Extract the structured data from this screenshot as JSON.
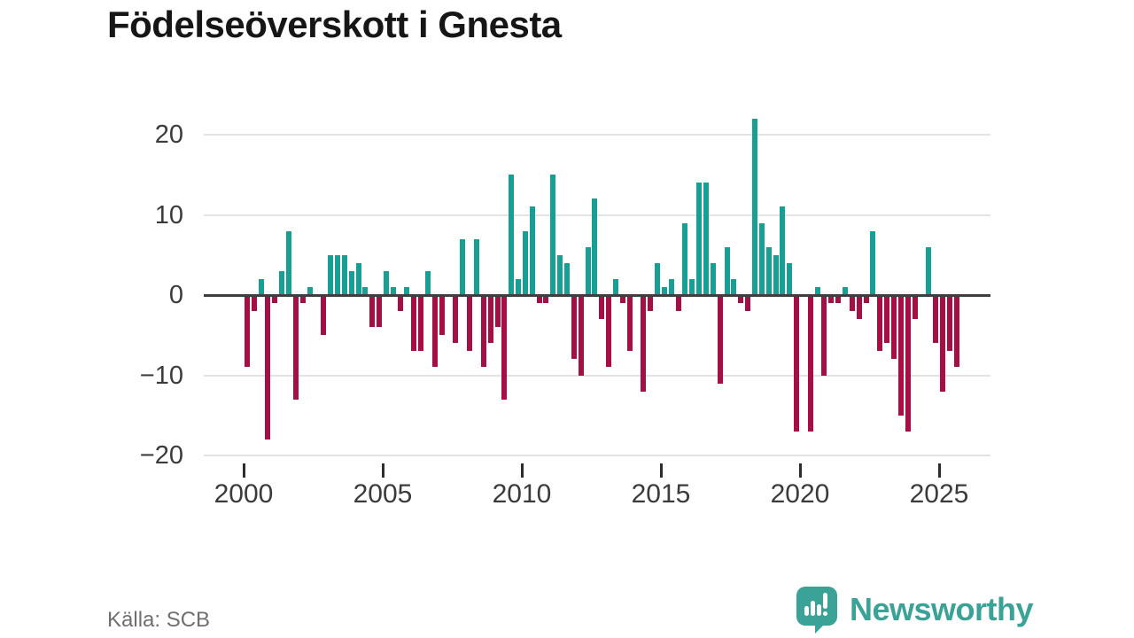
{
  "title": "Födelseöverskott i Gnesta",
  "source": "Källa: SCB",
  "brand": {
    "text": "Newsworthy",
    "color": "#3aa296"
  },
  "chart_data": {
    "type": "bar",
    "title": "Födelseöverskott i Gnesta",
    "frequency": "quarterly",
    "first_period": "2000 Q1",
    "last_period": "2025 Q3",
    "ylim": [
      -20,
      22
    ],
    "grid": true,
    "y_ticks": [
      20,
      10,
      0,
      -10,
      -20
    ],
    "y_tick_labels": [
      "20",
      "10",
      "0",
      "−10",
      "−20"
    ],
    "x_ticks": [
      2000,
      2005,
      2010,
      2015,
      2020,
      2025
    ],
    "x_tick_labels": [
      "2000",
      "2005",
      "2010",
      "2015",
      "2020",
      "2025"
    ],
    "positive_color": "#169f92",
    "negative_color": "#a50f45",
    "values": [
      -9,
      -2,
      2,
      -18,
      -1,
      3,
      8,
      -13,
      -1,
      1,
      0,
      -5,
      5,
      5,
      5,
      3,
      4,
      1,
      -4,
      -4,
      3,
      1,
      -2,
      1,
      -7,
      -7,
      3,
      -9,
      -5,
      0,
      -6,
      7,
      -7,
      7,
      -9,
      -6,
      -4,
      -13,
      15,
      2,
      8,
      11,
      -1,
      -1,
      15,
      5,
      4,
      -8,
      -10,
      6,
      12,
      -3,
      -9,
      2,
      -1,
      -7,
      0,
      -12,
      -2,
      4,
      1,
      2,
      -2,
      9,
      2,
      14,
      14,
      4,
      -11,
      6,
      2,
      -1,
      -2,
      22,
      9,
      6,
      5,
      11,
      4,
      -17,
      0,
      -17,
      1,
      -10,
      -1,
      -1,
      1,
      -2,
      -3,
      -1,
      8,
      -7,
      -6,
      -8,
      -15,
      -17,
      -3,
      0,
      6,
      -6,
      -12,
      -7,
      -9
    ]
  }
}
